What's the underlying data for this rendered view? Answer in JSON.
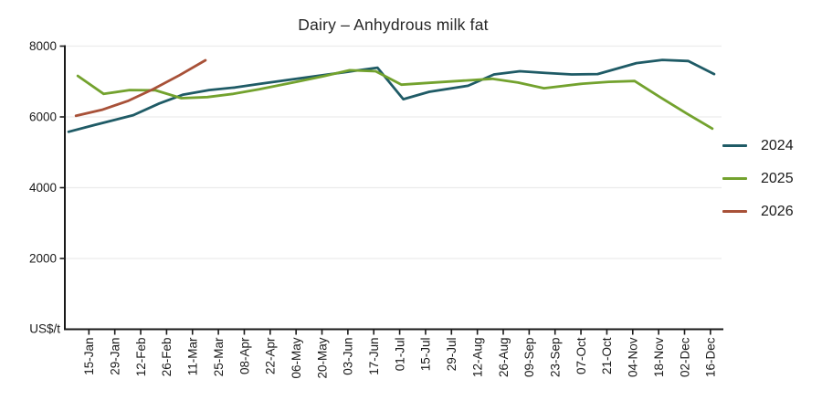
{
  "chart_data": {
    "type": "line",
    "title": "Dairy – Anhydrous milk fat",
    "ylabel": "US$/t",
    "xlabel": "",
    "ylim": [
      0,
      8000
    ],
    "y_ticks": [
      2000,
      4000,
      6000,
      8000
    ],
    "grid": "horizontal-only",
    "legend_position": "right",
    "x_unit": "day-of-year, biweekly auction dates",
    "x_tick_labels": [
      "15-Jan",
      "29-Jan",
      "12-Feb",
      "26-Feb",
      "11-Mar",
      "25-Mar",
      "08-Apr",
      "22-Apr",
      "06-May",
      "20-May",
      "03-Jun",
      "17-Jun",
      "01-Jul",
      "15-Jul",
      "29-Jul",
      "12-Aug",
      "26-Aug",
      "09-Sep",
      "23-Sep",
      "07-Oct",
      "21-Oct",
      "04-Nov",
      "18-Nov",
      "02-Dec",
      "16-Dec"
    ],
    "series": [
      {
        "name": "2024",
        "color": "#1f5b66",
        "days": [
          2,
          16,
          37,
          51,
          64,
          78,
          92,
          106,
          127,
          141,
          155,
          169,
          183,
          197,
          218,
          232,
          246,
          260,
          274,
          288,
          309,
          323,
          337,
          351
        ],
        "values": [
          5580,
          5770,
          6050,
          6380,
          6630,
          6760,
          6830,
          6940,
          7090,
          7190,
          7290,
          7390,
          6500,
          6710,
          6880,
          7200,
          7290,
          7240,
          7200,
          7210,
          7520,
          7610,
          7580,
          7210
        ]
      },
      {
        "name": "2025",
        "color": "#73a22e",
        "days": [
          7,
          21,
          35,
          49,
          63,
          77,
          91,
          105,
          126,
          140,
          154,
          168,
          182,
          196,
          217,
          231,
          245,
          259,
          280,
          294,
          308,
          322,
          336,
          350
        ],
        "values": [
          7160,
          6650,
          6760,
          6750,
          6530,
          6560,
          6650,
          6780,
          7000,
          7150,
          7320,
          7290,
          6910,
          6960,
          7030,
          7075,
          6970,
          6810,
          6940,
          6990,
          7015,
          6550,
          6100,
          5670
        ]
      },
      {
        "name": "2026",
        "color": "#a85138",
        "days": [
          6,
          20,
          34,
          48,
          62,
          76
        ],
        "values": [
          6030,
          6200,
          6450,
          6790,
          7180,
          7600
        ]
      }
    ]
  },
  "style": {
    "axis_color": "#1a1a1a",
    "grid_color": "#ececec",
    "tick_text_color": "#1a1a1a",
    "title_color": "#262626"
  }
}
